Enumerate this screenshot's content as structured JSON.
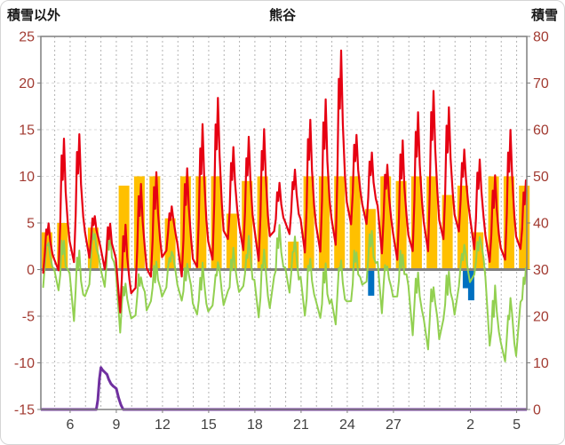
{
  "chart_data": {
    "type": "composite_line_bar",
    "title": "熊谷",
    "top_left_label": "積雪以外",
    "top_right_label": "積雪",
    "background": "#ffffff",
    "frame_color": "#7f7f7f",
    "grid_color_v": "#b3b3b3",
    "grid_color_h": "#d9d9d9",
    "zero_line_color": "#808080",
    "left_axis": {
      "title": "積雪以外",
      "min": -15,
      "max": 25,
      "tick_step": 5,
      "tick_values": [
        25,
        20,
        15,
        10,
        5,
        0,
        -5,
        -10,
        -15
      ],
      "tick_labels": [
        "25",
        "20",
        "15",
        "10",
        "5",
        "0",
        "-5",
        "-10",
        "-15"
      ],
      "label_color": "#a23b32"
    },
    "right_axis": {
      "title": "積雪",
      "min": 0,
      "max": 80,
      "tick_step": 10,
      "tick_values": [
        80,
        70,
        60,
        50,
        40,
        30,
        20,
        10,
        0
      ],
      "tick_labels": [
        "80",
        "70",
        "60",
        "50",
        "40",
        "30",
        "20",
        "10",
        "0"
      ],
      "label_color": "#a23b32"
    },
    "x_axis": {
      "domain": [
        4.1,
        35.66
      ],
      "gridline_every_days": 1,
      "label_color": "#404040",
      "ticks": [
        {
          "day": 6,
          "label": "6"
        },
        {
          "day": 9,
          "label": "9"
        },
        {
          "day": 12,
          "label": "12"
        },
        {
          "day": 15,
          "label": "15"
        },
        {
          "day": 18,
          "label": "18"
        },
        {
          "day": 21,
          "label": "21"
        },
        {
          "day": 24,
          "label": "24"
        },
        {
          "day": 27,
          "label": "27"
        },
        {
          "day": 32,
          "label": "2"
        },
        {
          "day": 35,
          "label": "5"
        }
      ]
    },
    "series": {
      "red_line": {
        "color": "#e60012",
        "axis": "left",
        "start_day": 4,
        "daily_max": [
          5,
          14,
          14.5,
          6,
          5,
          5,
          9.5,
          10.5,
          7,
          11,
          15.5,
          18.5,
          13,
          14,
          15,
          9,
          10.5,
          16,
          18,
          23.5,
          14.5,
          12.5,
          11.5,
          14,
          17,
          19.5,
          17.5,
          13,
          12,
          10,
          15,
          9.5
        ],
        "daily_min": [
          0,
          0,
          1,
          1.5,
          0,
          -4.5,
          -2,
          -1,
          2,
          -1,
          0,
          1,
          3,
          2,
          1,
          4,
          4,
          2,
          2,
          3,
          5,
          5,
          2,
          1,
          2,
          2,
          3,
          4,
          2,
          0.5,
          1,
          2
        ]
      },
      "green_line": {
        "color": "#92d050",
        "axis": "left",
        "start_day": 4,
        "daily_max": [
          3,
          3,
          2,
          4.5,
          4.5,
          -1,
          0,
          1,
          2.5,
          1,
          0.5,
          1,
          2,
          3,
          2,
          4,
          3,
          1,
          0,
          1,
          2,
          4,
          1,
          2,
          0,
          -1,
          0,
          3,
          4,
          -2,
          -3,
          0
        ],
        "daily_min": [
          -1,
          -2,
          -5,
          -1,
          -2,
          -6.5,
          -5,
          -4,
          -2,
          -4,
          -5.5,
          -4,
          -3,
          -2,
          -5,
          -1,
          -2,
          -4.5,
          -5,
          -5,
          -3,
          -1,
          -4,
          -3,
          -7,
          -8.5,
          -6,
          -2,
          -1,
          -9,
          -10,
          -4
        ]
      },
      "orange_bars": {
        "color": "#ffc000",
        "axis": "left",
        "start_day": 4,
        "daily_values": [
          4,
          5,
          0,
          4.5,
          0,
          9,
          10,
          10,
          5.5,
          10,
          10,
          10,
          6,
          9.5,
          10,
          0,
          3,
          10,
          10,
          10,
          10,
          6.5,
          10,
          9.5,
          10,
          10,
          8,
          9,
          4,
          10,
          10,
          9
        ]
      },
      "blue_bars": {
        "color": "#0070c0",
        "axis": "left",
        "entries": [
          {
            "day": 25.55,
            "value": -2.8
          },
          {
            "day": 31.7,
            "value": -2.0
          },
          {
            "day": 32.05,
            "value": -3.3
          }
        ]
      },
      "purple_line": {
        "color": "#7030a0",
        "axis": "right",
        "points": [
          [
            4.1,
            0
          ],
          [
            7.7,
            0
          ],
          [
            7.8,
            2
          ],
          [
            7.9,
            6.5
          ],
          [
            8.0,
            9
          ],
          [
            8.1,
            8.5
          ],
          [
            8.25,
            8
          ],
          [
            8.4,
            7.5
          ],
          [
            8.5,
            6.5
          ],
          [
            8.65,
            5.5
          ],
          [
            8.8,
            5
          ],
          [
            9.0,
            4.5
          ],
          [
            9.15,
            2.5
          ],
          [
            9.3,
            1
          ],
          [
            9.45,
            0
          ],
          [
            35.66,
            0
          ]
        ]
      }
    }
  }
}
